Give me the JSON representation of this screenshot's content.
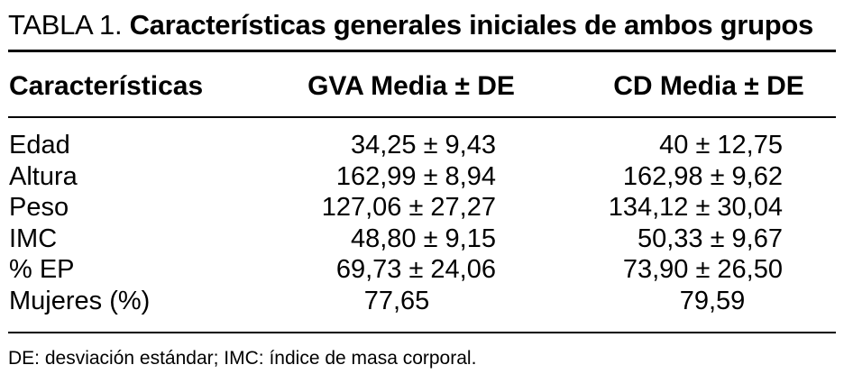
{
  "table": {
    "title_prefix": "TABLA 1.",
    "title_caption": "Características generales iniciales de ambos grupos",
    "headers": [
      "Características",
      "GVA Media ± DE",
      "CD Media ± DE"
    ],
    "rows": [
      {
        "label": "Edad",
        "gva": "34,25 ± 9,43",
        "cd": "40 ± 12,75"
      },
      {
        "label": "Altura",
        "gva": "162,99 ± 8,94",
        "cd": "162,98 ± 9,62"
      },
      {
        "label": "Peso",
        "gva": "127,06 ± 27,27",
        "cd": "134,12 ± 30,04"
      },
      {
        "label": "IMC",
        "gva": "48,80 ± 9,15",
        "cd": "50,33 ± 9,67"
      },
      {
        "label": "% EP",
        "gva": "69,73 ± 24,06",
        "cd": "73,90 ± 26,50"
      },
      {
        "label": "Mujeres (%)",
        "gva": "77,65",
        "cd": "79,59"
      }
    ],
    "footnote": "DE: desviación estándar; IMC: índice de masa corporal."
  }
}
